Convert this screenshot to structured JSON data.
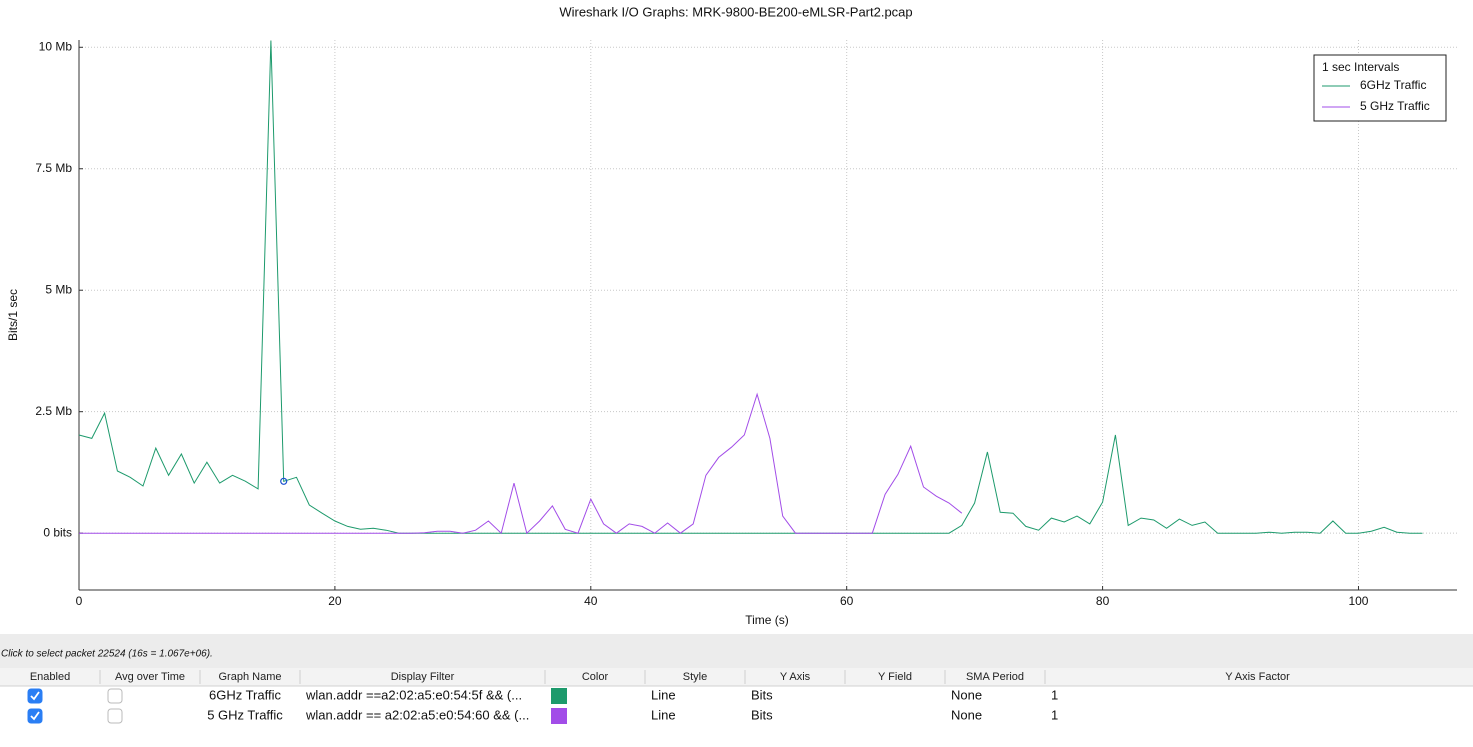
{
  "chart_data": {
    "type": "line",
    "title": "Wireshark I/O Graphs: MRK-9800-BE200-eMLSR-Part2.pcap",
    "x_label": "Time (s)",
    "y_label": "Bits/1 sec",
    "legend_title": "1 sec Intervals",
    "legend": "top-right",
    "grid": true,
    "xlim": [
      0,
      107.7
    ],
    "xticks": [
      0,
      20,
      40,
      60,
      80,
      100
    ],
    "ylim": [
      -1170000,
      10150000
    ],
    "yticks": [
      {
        "value": 0,
        "label": "0 bits"
      },
      {
        "value": 2500000,
        "label": "2.5 Mb"
      },
      {
        "value": 5000000,
        "label": "5 Mb"
      },
      {
        "value": 7500000,
        "label": "7.5 Mb"
      },
      {
        "value": 10000000,
        "label": "10 Mb"
      }
    ],
    "x": [
      0,
      1,
      2,
      3,
      4,
      5,
      6,
      7,
      8,
      9,
      10,
      11,
      12,
      13,
      14,
      15,
      16,
      17,
      18,
      19,
      20,
      21,
      22,
      23,
      24,
      25,
      26,
      27,
      28,
      29,
      30,
      31,
      32,
      33,
      34,
      35,
      36,
      37,
      38,
      39,
      40,
      41,
      42,
      43,
      44,
      45,
      46,
      47,
      48,
      49,
      50,
      51,
      52,
      53,
      54,
      55,
      56,
      57,
      58,
      59,
      60,
      61,
      62,
      63,
      64,
      65,
      66,
      67,
      68,
      69,
      70,
      71,
      72,
      73,
      74,
      75,
      76,
      77,
      78,
      79,
      80,
      81,
      82,
      83,
      84,
      85,
      86,
      87,
      88,
      89,
      90,
      91,
      92,
      93,
      94,
      95,
      96,
      97,
      98,
      99,
      100,
      101,
      102,
      103,
      104,
      105
    ],
    "series": [
      {
        "name": "6GHz Traffic",
        "color": "#1d9a6c",
        "values": [
          2020000,
          1950000,
          2470000,
          1280000,
          1150000,
          970000,
          1750000,
          1190000,
          1630000,
          1030000,
          1460000,
          1030000,
          1190000,
          1070000,
          910000,
          10140000,
          1067000,
          1150000,
          580000,
          410000,
          250000,
          140000,
          80000,
          100000,
          60000,
          0,
          0,
          0,
          0,
          0,
          0,
          0,
          0,
          0,
          0,
          0,
          0,
          0,
          0,
          0,
          0,
          0,
          0,
          0,
          0,
          0,
          0,
          0,
          0,
          0,
          0,
          0,
          0,
          0,
          0,
          0,
          0,
          0,
          0,
          0,
          0,
          0,
          0,
          0,
          0,
          0,
          0,
          0,
          0,
          160000,
          620000,
          1670000,
          430000,
          410000,
          140000,
          60000,
          310000,
          230000,
          350000,
          190000,
          640000,
          2020000,
          160000,
          310000,
          270000,
          100000,
          290000,
          160000,
          230000,
          0,
          0,
          0,
          0,
          20000,
          0,
          20000,
          20000,
          0,
          250000,
          0,
          0,
          40000,
          120000,
          20000,
          0,
          0
        ]
      },
      {
        "name": "5 GHz Traffic",
        "color": "#a24de8",
        "values": [
          0,
          0,
          0,
          0,
          0,
          0,
          0,
          0,
          0,
          0,
          0,
          0,
          0,
          0,
          0,
          0,
          0,
          0,
          0,
          0,
          0,
          0,
          0,
          0,
          0,
          0,
          0,
          10000,
          40000,
          40000,
          0,
          60000,
          250000,
          0,
          1030000,
          0,
          250000,
          560000,
          80000,
          0,
          700000,
          190000,
          0,
          190000,
          140000,
          0,
          210000,
          0,
          190000,
          1190000,
          1560000,
          1770000,
          2020000,
          2860000,
          1950000,
          350000,
          0,
          0,
          0,
          0,
          0,
          0,
          0,
          800000,
          1210000,
          1790000,
          950000,
          760000,
          620000,
          410000,
          null,
          null,
          null,
          null,
          null,
          null,
          null,
          null,
          null,
          null,
          null,
          null,
          null,
          null,
          null,
          null,
          null,
          null,
          null,
          null,
          null,
          null,
          null,
          null,
          null,
          null,
          null,
          null,
          null,
          null,
          null,
          null,
          null,
          null,
          null,
          null
        ]
      }
    ]
  },
  "status": "Click to select packet 22524 (16s = 1.067e+06).",
  "table": {
    "columns": [
      "Enabled",
      "Avg over Time",
      "Graph Name",
      "Display Filter",
      "Color",
      "Style",
      "Y Axis",
      "Y Field",
      "SMA Period",
      "Y Axis Factor"
    ],
    "rows": [
      {
        "enabled": true,
        "avg_over_time": false,
        "graph_name": "6GHz Traffic",
        "display_filter": "wlan.addr ==a2:02:a5:e0:54:5f && (...",
        "style": "Line",
        "y_axis": "Bits",
        "sma_period": "None",
        "y_axis_factor": 1
      },
      {
        "enabled": true,
        "avg_over_time": false,
        "graph_name": "5 GHz Traffic",
        "display_filter": "wlan.addr == a2:02:a5:e0:54:60 && (...",
        "style": "Line",
        "y_axis": "Bits",
        "sma_period": "None",
        "y_axis_factor": 1
      }
    ]
  }
}
